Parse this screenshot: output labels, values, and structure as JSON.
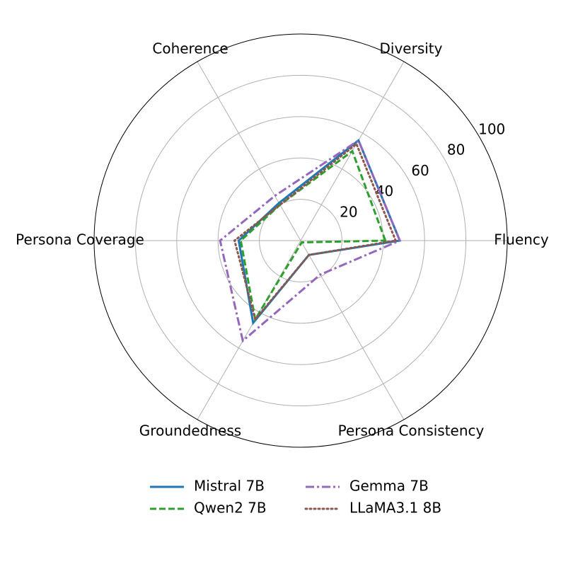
{
  "chart_data": {
    "type": "radar",
    "categories": [
      "Fluency",
      "Diversity",
      "Coherence",
      "Persona Coverage",
      "Groundedness",
      "Persona Consistency"
    ],
    "rlim": [
      0,
      100
    ],
    "rticks": [
      20,
      40,
      60,
      80,
      100
    ],
    "grid": true,
    "legend": "lower center",
    "series": [
      {
        "name": "Mistral 7B",
        "color": "#1f77b4",
        "linestyle": "solid",
        "values": [
          48,
          56,
          21,
          30,
          46,
          8
        ]
      },
      {
        "name": "Qwen2 7B",
        "color": "#2ca02c",
        "linestyle": "dashed",
        "values": [
          41,
          50,
          20,
          29,
          44,
          1
        ]
      },
      {
        "name": "Gemma 7B",
        "color": "#9467bd",
        "linestyle": "dashdot",
        "values": [
          48,
          56,
          25,
          39,
          56,
          19
        ]
      },
      {
        "name": "LLaMA3.1 8B",
        "color": "#8c564b",
        "linestyle": "dotted",
        "values": [
          46,
          54,
          20,
          32,
          44,
          8
        ]
      }
    ]
  }
}
